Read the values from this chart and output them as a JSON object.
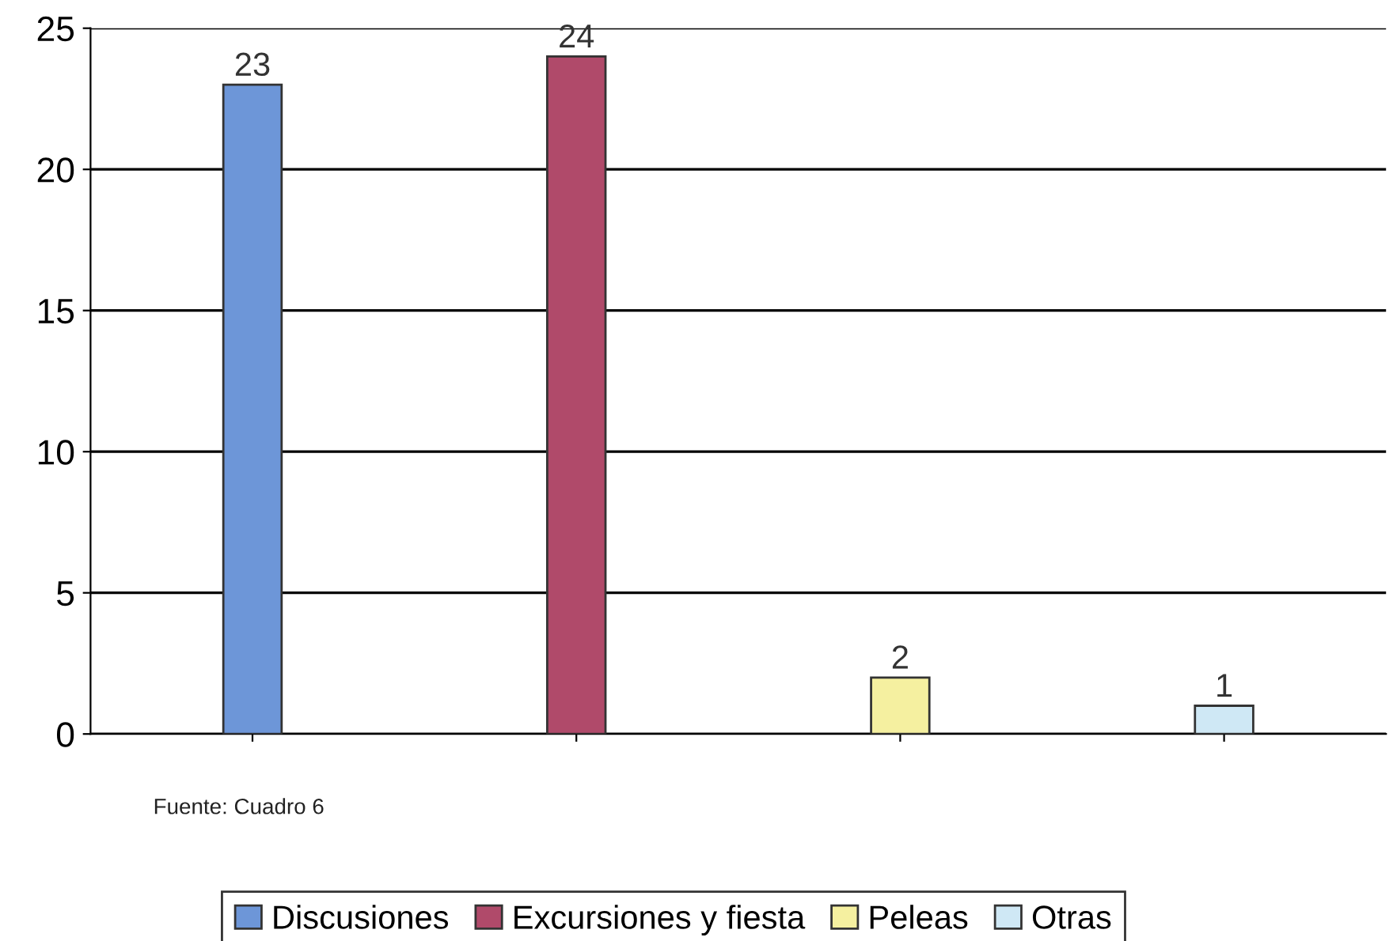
{
  "chart_data": {
    "type": "bar",
    "categories": [
      null,
      null,
      null,
      null
    ],
    "series": [
      {
        "name": "Discusiones",
        "color": "#6d96d8",
        "values": [
          23,
          null,
          null,
          null
        ]
      },
      {
        "name": "Excursiones y fiesta",
        "color": "#b04a6a",
        "values": [
          null,
          24,
          null,
          null
        ]
      },
      {
        "name": "Peleas",
        "color": "#f5f0a0",
        "values": [
          null,
          null,
          2,
          null
        ]
      },
      {
        "name": "Otras",
        "color": "#cfe8f5",
        "values": [
          null,
          null,
          null,
          1
        ]
      }
    ],
    "ylim": [
      0,
      25
    ],
    "yticks": [
      0,
      5,
      10,
      15,
      20,
      25
    ],
    "grid": "y",
    "legend": "bottom",
    "data_labels": true,
    "annotations": [
      "Fuente: Cuadro 6"
    ]
  }
}
